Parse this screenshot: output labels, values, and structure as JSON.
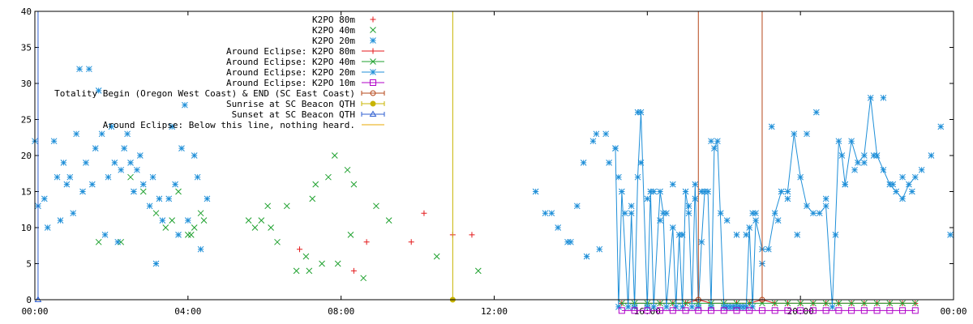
{
  "chart_data": {
    "type": "scatter",
    "title": "",
    "xlabel": "",
    "ylabel": "",
    "xlim": [
      "00:00",
      "24:00"
    ],
    "ylim": [
      0,
      40
    ],
    "x_ticks": [
      "00:00",
      "04:00",
      "08:00",
      "12:00",
      "16:00",
      "20:00",
      "00:00"
    ],
    "y_ticks": [
      "0",
      "5",
      "10",
      "15",
      "20",
      "25",
      "30",
      "35",
      "40"
    ],
    "grid": false,
    "legend_position": "top-center",
    "series": [
      {
        "name": "K2PO 80m",
        "style": "points",
        "marker": "plus",
        "color": "#e41a1c",
        "x": [
          "06:55",
          "08:20",
          "08:40",
          "09:50",
          "10:10",
          "10:55",
          "11:25"
        ],
        "y": [
          7,
          4,
          8,
          8,
          12,
          9,
          9
        ]
      },
      {
        "name": "K2PO 40m",
        "style": "points",
        "marker": "cross",
        "color": "#1fa12f",
        "x": [
          "01:40",
          "02:15",
          "02:30",
          "02:50",
          "03:10",
          "03:25",
          "03:35",
          "03:45",
          "04:00",
          "04:05",
          "04:10",
          "04:20",
          "04:25",
          "05:35",
          "05:45",
          "05:55",
          "06:05",
          "06:10",
          "06:20",
          "06:35",
          "06:50",
          "07:05",
          "07:10",
          "07:15",
          "07:20",
          "07:30",
          "07:40",
          "07:50",
          "07:55",
          "08:10",
          "08:15",
          "08:20",
          "08:35",
          "08:55",
          "09:15",
          "10:30",
          "11:35"
        ],
        "y": [
          8,
          8,
          17,
          15,
          12,
          10,
          11,
          15,
          9,
          9,
          10,
          12,
          11,
          11,
          10,
          11,
          13,
          10,
          8,
          13,
          4,
          6,
          4,
          14,
          16,
          5,
          17,
          20,
          5,
          18,
          9,
          16,
          3,
          13,
          11,
          6,
          4
        ]
      },
      {
        "name": "K2PO 20m",
        "style": "points",
        "marker": "star",
        "color": "#1f8fd8",
        "x": [
          "00:00",
          "00:05",
          "00:15",
          "00:20",
          "00:30",
          "00:35",
          "00:40",
          "00:45",
          "00:50",
          "00:55",
          "01:00",
          "01:05",
          "01:10",
          "01:15",
          "01:20",
          "01:25",
          "01:30",
          "01:35",
          "01:40",
          "01:45",
          "01:50",
          "01:55",
          "02:00",
          "02:05",
          "02:10",
          "02:15",
          "02:20",
          "02:25",
          "02:30",
          "02:35",
          "02:40",
          "02:45",
          "02:50",
          "03:00",
          "03:05",
          "03:10",
          "03:15",
          "03:20",
          "03:30",
          "03:35",
          "03:40",
          "03:45",
          "03:50",
          "03:55",
          "04:00",
          "04:10",
          "04:15",
          "04:20",
          "04:30",
          "13:05",
          "13:20",
          "13:30",
          "13:40",
          "13:55",
          "14:00",
          "14:10",
          "14:20",
          "14:25",
          "14:35",
          "14:40",
          "14:45",
          "14:55",
          "15:00",
          "15:10",
          "15:15",
          "15:25",
          "15:35",
          "15:45",
          "15:50",
          "16:00",
          "16:10",
          "16:20",
          "16:30",
          "16:40",
          "16:55",
          "17:05",
          "17:15",
          "17:25",
          "17:40",
          "17:55",
          "18:05",
          "18:20",
          "18:35",
          "18:45",
          "18:50",
          "19:00",
          "19:15",
          "19:25",
          "19:40",
          "19:55",
          "20:10",
          "20:25",
          "20:40",
          "20:55",
          "21:10",
          "21:25",
          "21:40",
          "21:55",
          "22:10",
          "22:25",
          "22:40",
          "22:55",
          "23:10",
          "23:25",
          "23:40",
          "23:55"
        ],
        "y": [
          22,
          13,
          14,
          10,
          22,
          17,
          11,
          19,
          16,
          17,
          12,
          23,
          32,
          15,
          19,
          32,
          16,
          21,
          29,
          23,
          9,
          17,
          24,
          19,
          8,
          18,
          21,
          23,
          19,
          15,
          18,
          20,
          16,
          13,
          17,
          5,
          14,
          11,
          14,
          24,
          16,
          9,
          21,
          27,
          11,
          20,
          17,
          7,
          14,
          15,
          12,
          12,
          10,
          8,
          8,
          13,
          19,
          6,
          22,
          23,
          7,
          23,
          19,
          21,
          17,
          12,
          13,
          26,
          19,
          14,
          15,
          11,
          12,
          16,
          9,
          13,
          14,
          15,
          22,
          12,
          11,
          9,
          9,
          12,
          12,
          5,
          24,
          11,
          14,
          9,
          23,
          26,
          14,
          9,
          16,
          18,
          19,
          20,
          28,
          16,
          17,
          15,
          18,
          20,
          24,
          9
        ]
      },
      {
        "name": "Around Eclipse: K2PO 80m",
        "style": "linespoints",
        "marker": "plus",
        "color": "#e41a1c",
        "x": [
          "15:20",
          "15:40",
          "16:00",
          "16:20",
          "16:40",
          "17:00",
          "17:20",
          "17:40",
          "18:00",
          "18:20",
          "18:40",
          "19:00",
          "19:20",
          "19:40",
          "20:00",
          "20:20",
          "20:40",
          "21:00",
          "21:20",
          "21:40",
          "22:00",
          "22:20",
          "22:40",
          "23:00"
        ],
        "y": [
          -0.5,
          -0.5,
          -0.5,
          -0.5,
          -0.5,
          -0.5,
          0,
          -0.5,
          -0.5,
          -0.5,
          -0.5,
          0,
          -0.5,
          -0.5,
          -0.5,
          -0.5,
          -0.5,
          -0.5,
          -0.5,
          -0.5,
          -0.5,
          -0.5,
          -0.5,
          -0.5
        ]
      },
      {
        "name": "Around Eclipse: K2PO 40m",
        "style": "linespoints",
        "marker": "cross",
        "color": "#1fa12f",
        "x": [
          "15:20",
          "15:40",
          "16:00",
          "16:20",
          "16:40",
          "17:00",
          "17:20",
          "17:40",
          "18:00",
          "18:20",
          "18:40",
          "19:00",
          "19:20",
          "19:40",
          "20:00",
          "20:20",
          "20:40",
          "21:00",
          "21:20",
          "21:40",
          "22:00",
          "22:20",
          "22:40",
          "23:00"
        ],
        "y": [
          -0.5,
          -0.5,
          -0.5,
          -0.5,
          -0.5,
          -0.5,
          -0.5,
          -0.5,
          -0.5,
          -0.5,
          -0.5,
          -0.5,
          -0.5,
          -0.5,
          -0.5,
          -0.5,
          -0.5,
          -0.5,
          -0.5,
          -0.5,
          -0.5,
          -0.5,
          -0.5,
          -0.5
        ]
      },
      {
        "name": "Around Eclipse: K2PO 20m",
        "style": "linespoints",
        "marker": "star",
        "color": "#1f8fd8",
        "x": [
          "15:10",
          "15:15",
          "15:20",
          "15:30",
          "15:35",
          "15:40",
          "15:45",
          "15:50",
          "16:00",
          "16:05",
          "16:10",
          "16:20",
          "16:25",
          "16:30",
          "16:40",
          "16:45",
          "16:50",
          "16:55",
          "17:00",
          "17:05",
          "17:10",
          "17:15",
          "17:20",
          "17:25",
          "17:30",
          "17:35",
          "17:40",
          "17:45",
          "17:50",
          "18:00",
          "18:05",
          "18:10",
          "18:15",
          "18:20",
          "18:25",
          "18:30",
          "18:35",
          "18:40",
          "18:45",
          "18:50",
          "19:00",
          "19:10",
          "19:20",
          "19:30",
          "19:40",
          "19:50",
          "20:00",
          "20:10",
          "20:20",
          "20:30",
          "20:40",
          "20:50",
          "21:00",
          "21:05",
          "21:10",
          "21:20",
          "21:30",
          "21:40",
          "21:50",
          "22:00",
          "22:10",
          "22:20",
          "22:30",
          "22:40",
          "22:50",
          "23:00"
        ],
        "y": [
          21,
          -1,
          15,
          -1,
          12,
          -1,
          17,
          26,
          -1,
          15,
          -1,
          15,
          12,
          -1,
          10,
          -1,
          9,
          -1,
          15,
          12,
          -1,
          16,
          -1,
          8,
          15,
          15,
          -1,
          21,
          22,
          -1,
          -1,
          -1,
          -1,
          -1,
          -1,
          -1,
          -1,
          10,
          -1,
          11,
          7,
          7,
          12,
          15,
          15,
          23,
          17,
          13,
          12,
          12,
          13,
          -1,
          22,
          20,
          16,
          22,
          19,
          20,
          28,
          20,
          18,
          16,
          15,
          14,
          16,
          17
        ]
      },
      {
        "name": "Around Eclipse: K2PO 10m",
        "style": "linespoints",
        "marker": "square",
        "color": "#b000c8",
        "x": [
          "15:20",
          "15:40",
          "16:00",
          "16:20",
          "16:40",
          "17:00",
          "17:20",
          "17:40",
          "18:00",
          "18:20",
          "18:40",
          "19:00",
          "19:20",
          "19:40",
          "20:00",
          "20:20",
          "20:40",
          "21:00",
          "21:20",
          "21:40",
          "22:00",
          "22:20",
          "22:40",
          "23:00"
        ],
        "y": [
          -1.5,
          -1.5,
          -1.5,
          -1.5,
          -1.5,
          -1.5,
          -1.5,
          -1.5,
          -1.5,
          -1.5,
          -1.5,
          -1.5,
          -1.5,
          -1.5,
          -1.5,
          -1.5,
          -1.5,
          -1.5,
          -1.5,
          -1.5,
          -1.5,
          -1.5,
          -1.5,
          -1.5
        ]
      },
      {
        "name": "Totality Begin (Oregon West Coast) & END (SC East Coast)",
        "style": "impulses",
        "marker": "circle",
        "color": "#b5471a",
        "x": [
          "17:20",
          "19:00"
        ],
        "y": [
          40,
          40
        ]
      },
      {
        "name": "Sunrise at SC Beacon QTH",
        "style": "impulses",
        "marker": "dot",
        "color": "#c8b400",
        "x": [
          "10:55"
        ],
        "y": [
          40
        ]
      },
      {
        "name": "Sunset at SC Beacon QTH",
        "style": "impulses",
        "marker": "triangle",
        "color": "#2f5fd0",
        "x": [
          "00:05"
        ],
        "y": [
          40
        ]
      },
      {
        "name": "Around Eclipse: Below this line, nothing heard.",
        "style": "line",
        "marker": "none",
        "color": "#e8a800",
        "x": [
          "00:00",
          "24:00"
        ],
        "y": [
          0,
          0
        ]
      }
    ]
  }
}
